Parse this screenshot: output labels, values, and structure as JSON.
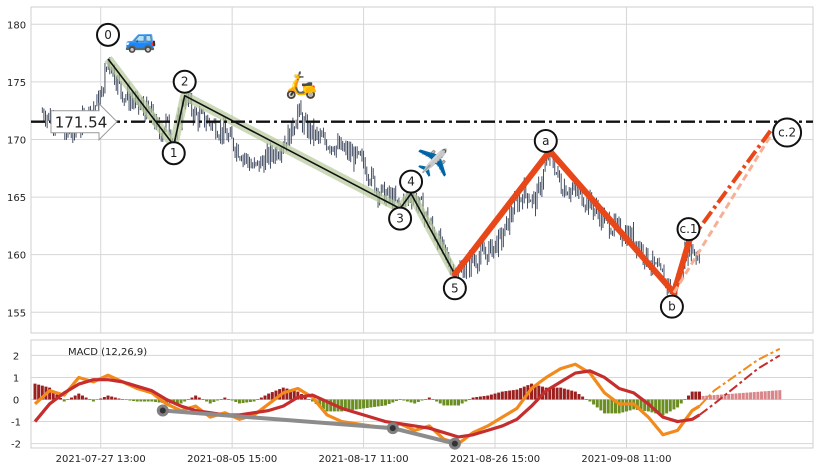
{
  "chart_data": [
    {
      "type": "candlestick",
      "panel": "price",
      "title": "",
      "x_tick_labels": [
        "2021-07-27 13:00",
        "2021-08-05 15:00",
        "2021-08-17 11:00",
        "2021-08-26 15:00",
        "2021-09-08 11:00"
      ],
      "x_tick_positions": [
        9,
        27,
        45,
        63,
        81
      ],
      "x_range": [
        0,
        106
      ],
      "y_ticks": [
        155,
        160,
        165,
        170,
        175,
        180
      ],
      "ylim": [
        153.2,
        181.5
      ],
      "grid": true,
      "horizontal_level": {
        "value": 171.54,
        "label": "171.54",
        "style": "dash-dot"
      },
      "impulse_wave": [
        {
          "label": "0",
          "x": 10,
          "y": 177.0
        },
        {
          "label": "1",
          "x": 19,
          "y": 169.5
        },
        {
          "label": "2",
          "x": 20.5,
          "y": 173.8
        },
        {
          "label": "3",
          "x": 50,
          "y": 164.0
        },
        {
          "label": "4",
          "x": 51.5,
          "y": 165.3
        },
        {
          "label": "5",
          "x": 57.5,
          "y": 158.3
        }
      ],
      "correction_wave": [
        {
          "label": "5",
          "x": 57.5,
          "y": 158.3
        },
        {
          "label": "a",
          "x": 70.5,
          "y": 169.0
        },
        {
          "label": "b",
          "x": 87.5,
          "y": 156.7
        },
        {
          "label": "c.1",
          "x": 89.5,
          "y": 161.0
        }
      ],
      "projections": [
        {
          "x": [
            87.5,
            101.0
          ],
          "y": [
            156.7,
            170.6
          ]
        },
        {
          "x": [
            89.5,
            101.0
          ],
          "y": [
            161.0,
            171.0
          ]
        }
      ],
      "target_label": {
        "label": "c.2",
        "x": 103,
        "y": 170.6
      },
      "icons": [
        {
          "name": "car-icon",
          "glyph": "🚙",
          "x": 14.5,
          "y": 178.0
        },
        {
          "name": "scooter-icon",
          "glyph": "🛵",
          "x": 36.5,
          "y": 174.0
        },
        {
          "name": "airplane-icon",
          "glyph": "✈️",
          "x": 54.5,
          "y": 167.2
        }
      ],
      "price_path": [
        [
          1,
          172.4
        ],
        [
          3,
          171.5
        ],
        [
          5,
          170.2
        ],
        [
          7,
          172.0
        ],
        [
          9,
          173.5
        ],
        [
          10,
          177.0
        ],
        [
          12,
          174.0
        ],
        [
          14,
          173.0
        ],
        [
          16,
          172.2
        ],
        [
          17,
          170.5
        ],
        [
          18,
          171.6
        ],
        [
          19,
          169.5
        ],
        [
          20.5,
          173.8
        ],
        [
          22,
          172.0
        ],
        [
          24,
          171.5
        ],
        [
          26,
          170.5
        ],
        [
          28,
          169.0
        ],
        [
          30,
          167.5
        ],
        [
          31,
          168.0
        ],
        [
          33,
          169.0
        ],
        [
          35,
          170.5
        ],
        [
          36,
          172.5
        ],
        [
          37,
          171.0
        ],
        [
          39,
          170.0
        ],
        [
          41,
          169.5
        ],
        [
          43,
          168.8
        ],
        [
          45,
          168.0
        ],
        [
          47,
          165.5
        ],
        [
          49,
          164.8
        ],
        [
          50,
          164.0
        ],
        [
          51.5,
          165.3
        ],
        [
          53,
          164.0
        ],
        [
          55,
          161.5
        ],
        [
          56.5,
          159.5
        ],
        [
          57.5,
          158.3
        ],
        [
          59,
          159.0
        ],
        [
          60,
          159.5
        ],
        [
          62,
          160.2
        ],
        [
          64,
          161.5
        ],
        [
          65.5,
          164.0
        ],
        [
          67,
          165.5
        ],
        [
          68.5,
          164.5
        ],
        [
          70.5,
          169.0
        ],
        [
          72,
          166.0
        ],
        [
          74,
          165.5
        ],
        [
          76,
          164.5
        ],
        [
          78,
          163.0
        ],
        [
          80,
          162.0
        ],
        [
          82,
          161.5
        ],
        [
          84,
          159.5
        ],
        [
          86,
          158.0
        ],
        [
          87.5,
          156.7
        ],
        [
          88.5,
          159.0
        ],
        [
          89.5,
          161.0
        ],
        [
          90,
          160.5
        ],
        [
          91,
          159.8
        ]
      ]
    },
    {
      "type": "line",
      "panel": "macd",
      "legend": "MACD (12,26,9)",
      "y_ticks": [
        -2,
        -1,
        0,
        1,
        2
      ],
      "ylim": [
        -2.2,
        2.7
      ],
      "grid": true,
      "series": [
        {
          "role": "macd",
          "color": "#f28a1c",
          "x": [
            0,
            2,
            4,
            6,
            8,
            10,
            12,
            14,
            16,
            18,
            20,
            22,
            24,
            26,
            28,
            30,
            32,
            34,
            36,
            38,
            40,
            42,
            44,
            46,
            48,
            50,
            52,
            54,
            56,
            58,
            60,
            62,
            64,
            66,
            68,
            70,
            72,
            74,
            76,
            78,
            80,
            82,
            84,
            86,
            88,
            90,
            91
          ],
          "y": [
            -0.2,
            0.4,
            0.2,
            1.0,
            0.8,
            1.1,
            0.8,
            0.5,
            0.3,
            -0.2,
            -0.5,
            -0.3,
            -0.8,
            -0.6,
            -0.9,
            -0.7,
            -0.2,
            0.3,
            0.5,
            0.1,
            -0.7,
            -1.0,
            -1.1,
            -1.2,
            -1.3,
            -1.1,
            -1.4,
            -1.2,
            -1.8,
            -2.0,
            -1.5,
            -1.2,
            -0.8,
            -0.4,
            0.5,
            1.0,
            1.4,
            1.6,
            1.2,
            0.3,
            -0.2,
            -0.2,
            -0.8,
            -1.6,
            -1.4,
            -0.5,
            -0.3
          ]
        },
        {
          "role": "signal",
          "color": "#c62d2d",
          "x": [
            0,
            2,
            4,
            6,
            8,
            10,
            12,
            14,
            16,
            18,
            20,
            22,
            24,
            26,
            28,
            30,
            32,
            34,
            36,
            38,
            40,
            42,
            44,
            46,
            48,
            50,
            52,
            54,
            56,
            58,
            60,
            62,
            64,
            66,
            68,
            70,
            72,
            74,
            76,
            78,
            80,
            82,
            84,
            86,
            88,
            90,
            91
          ],
          "y": [
            -1.0,
            -0.2,
            0.3,
            0.7,
            0.9,
            0.9,
            0.8,
            0.6,
            0.4,
            0.0,
            -0.3,
            -0.5,
            -0.6,
            -0.7,
            -0.7,
            -0.6,
            -0.5,
            -0.3,
            0.1,
            0.2,
            -0.1,
            -0.4,
            -0.6,
            -0.8,
            -1.0,
            -1.1,
            -1.2,
            -1.3,
            -1.5,
            -1.7,
            -1.6,
            -1.4,
            -1.2,
            -0.9,
            -0.3,
            0.4,
            0.8,
            1.2,
            1.3,
            1.0,
            0.5,
            0.3,
            -0.2,
            -0.8,
            -1.0,
            -0.9,
            -0.7
          ]
        }
      ],
      "histogram_color_positive": "#9b1f1f",
      "histogram_color_negative": "#6b8e23",
      "projection_series": [
        {
          "color": "#f28a1c",
          "x": [
            91,
            93,
            96,
            99,
            102
          ],
          "y": [
            -0.3,
            0.4,
            1.1,
            1.8,
            2.3
          ]
        },
        {
          "color": "#c62d2d",
          "x": [
            91,
            93,
            96,
            99,
            102
          ],
          "y": [
            -0.7,
            -0.2,
            0.6,
            1.4,
            2.0
          ]
        }
      ],
      "divergence_points": [
        {
          "x": 17.5,
          "y": -0.5
        },
        {
          "x": 49,
          "y": -1.3
        },
        {
          "x": 57.5,
          "y": -2.0
        }
      ]
    }
  ]
}
